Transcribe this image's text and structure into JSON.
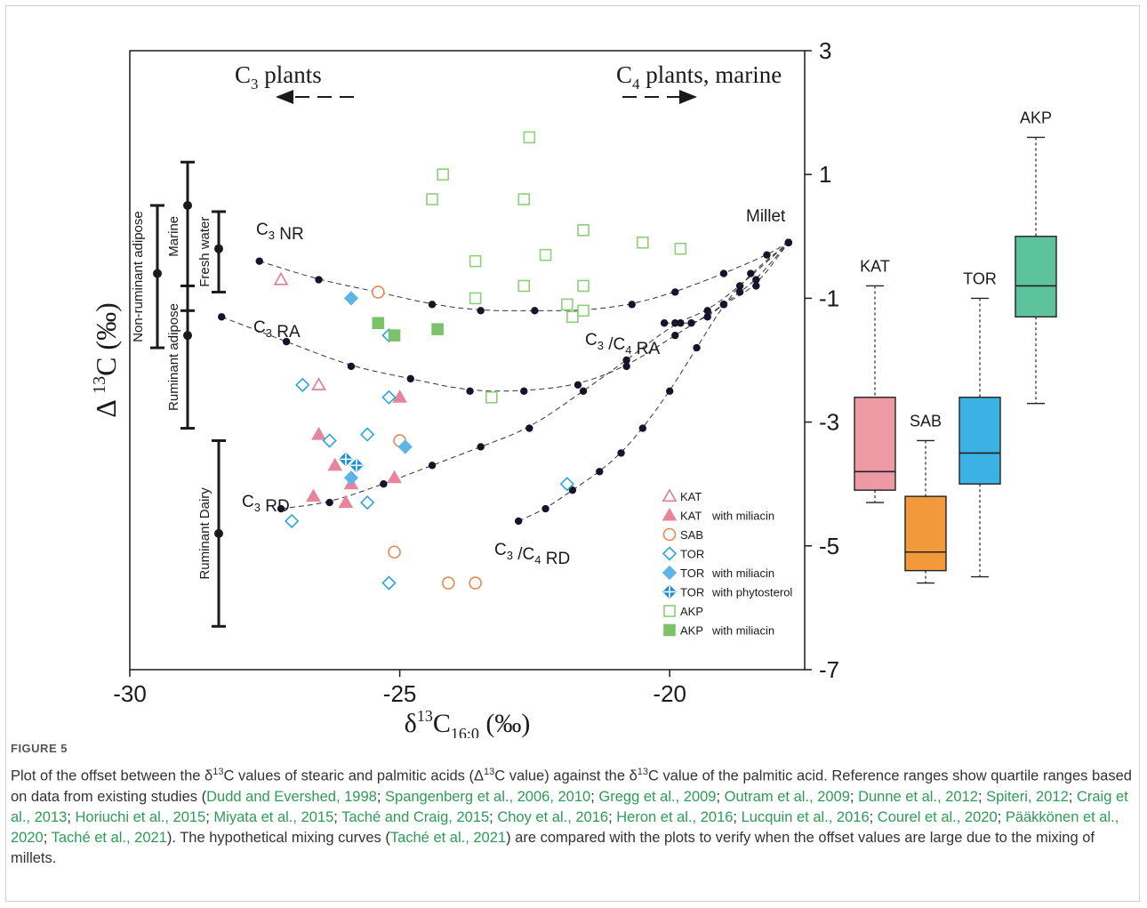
{
  "figure": {
    "label": "FIGURE 5",
    "caption_parts": [
      {
        "t": "Plot of the offset between the δ",
        "c": false
      },
      {
        "t": "13",
        "c": false,
        "sup": true
      },
      {
        "t": "C values of stearic and palmitic acids (Δ",
        "c": false
      },
      {
        "t": "13",
        "c": false,
        "sup": true
      },
      {
        "t": "C value) against the δ",
        "c": false
      },
      {
        "t": "13",
        "c": false,
        "sup": true
      },
      {
        "t": "C value of the palmitic acid. Reference ranges show quartile ranges based on data from existing studies (",
        "c": false
      },
      {
        "t": "Dudd and Evershed, 1998",
        "c": true
      },
      {
        "t": "; ",
        "c": false
      },
      {
        "t": "Spangenberg et al., 2006, 2010",
        "c": true
      },
      {
        "t": "; ",
        "c": false
      },
      {
        "t": "Gregg et al., 2009",
        "c": true
      },
      {
        "t": "; ",
        "c": false
      },
      {
        "t": "Outram et al., 2009",
        "c": true
      },
      {
        "t": "; ",
        "c": false
      },
      {
        "t": "Dunne et al., 2012",
        "c": true
      },
      {
        "t": "; ",
        "c": false
      },
      {
        "t": "Spiteri, 2012",
        "c": true
      },
      {
        "t": "; ",
        "c": false
      },
      {
        "t": "Craig et al., 2013",
        "c": true
      },
      {
        "t": "; ",
        "c": false
      },
      {
        "t": "Horiuchi et al., 2015",
        "c": true
      },
      {
        "t": "; ",
        "c": false
      },
      {
        "t": "Miyata et al., 2015",
        "c": true
      },
      {
        "t": "; ",
        "c": false
      },
      {
        "t": "Taché and Craig, 2015",
        "c": true
      },
      {
        "t": "; ",
        "c": false
      },
      {
        "t": "Choy et al., 2016",
        "c": true
      },
      {
        "t": "; ",
        "c": false
      },
      {
        "t": "Heron et al., 2016",
        "c": true
      },
      {
        "t": "; ",
        "c": false
      },
      {
        "t": "Lucquin et al., 2016",
        "c": true
      },
      {
        "t": "; ",
        "c": false
      },
      {
        "t": "Courel et al., 2020",
        "c": true
      },
      {
        "t": "; ",
        "c": false
      },
      {
        "t": "Pääkkönen et al., 2020",
        "c": true
      },
      {
        "t": "; ",
        "c": false
      },
      {
        "t": "Taché et al., 2021",
        "c": true
      },
      {
        "t": "). The hypothetical mixing curves (",
        "c": false
      },
      {
        "t": "Taché et al., 2021",
        "c": true
      },
      {
        "t": ") are compared with the plots to verify when the offset values are large due to the mixing of millets.",
        "c": false
      }
    ]
  },
  "chart_data": [
    {
      "type": "scatter",
      "xlabel": "δ13C16:0 (‰)",
      "ylabel": "Δ 13C (‰)",
      "xlim": [
        -30,
        -17.5
      ],
      "ylim": [
        -7,
        3
      ],
      "x_ticks": [
        -30,
        -25,
        -20
      ],
      "y_ticks": [
        3,
        1,
        -1,
        -3,
        -5,
        -7
      ],
      "top_annotations": {
        "left": "C3 plants",
        "right": "C4 plants, marine"
      },
      "reference_ranges": [
        {
          "label": "Non-ruminant adipose",
          "x": -29.6,
          "median": -0.6,
          "low": -1.8,
          "high": 0.5
        },
        {
          "label": "Marine",
          "x": -29.0,
          "median": 0.5,
          "low": -1.2,
          "high": 1.2
        },
        {
          "label": "Fresh water",
          "x": -28.4,
          "median": -0.2,
          "low": -0.9,
          "high": 0.4
        },
        {
          "label": "Ruminant adipose",
          "x": -29.0,
          "median": -1.6,
          "low": -3.1,
          "high": -0.8
        },
        {
          "label": "Ruminant Dairy",
          "x": -28.4,
          "median": -4.8,
          "low": -6.3,
          "high": -3.3
        }
      ],
      "curves": [
        {
          "label": "C3 NR",
          "points": [
            [
              -27.6,
              -0.4
            ],
            [
              -26.5,
              -0.7
            ],
            [
              -25.4,
              -0.9
            ],
            [
              -24.4,
              -1.1
            ],
            [
              -23.5,
              -1.2
            ],
            [
              -22.5,
              -1.2
            ],
            [
              -21.6,
              -1.2
            ],
            [
              -20.7,
              -1.1
            ],
            [
              -19.9,
              -0.9
            ],
            [
              -19.0,
              -0.6
            ],
            [
              -18.2,
              -0.3
            ],
            [
              -17.8,
              -0.1
            ]
          ]
        },
        {
          "label": "C3 RA",
          "points": [
            [
              -28.3,
              -1.3
            ],
            [
              -27.1,
              -1.7
            ],
            [
              -25.9,
              -2.1
            ],
            [
              -24.8,
              -2.3
            ],
            [
              -23.7,
              -2.5
            ],
            [
              -22.7,
              -2.5
            ],
            [
              -21.7,
              -2.4
            ],
            [
              -20.8,
              -2.1
            ],
            [
              -19.9,
              -1.6
            ],
            [
              -19.0,
              -1.1
            ],
            [
              -18.4,
              -0.8
            ],
            [
              -17.8,
              -0.1
            ]
          ]
        },
        {
          "label": "C3 RD",
          "points": [
            [
              -27.2,
              -4.4
            ],
            [
              -26.3,
              -4.3
            ],
            [
              -25.3,
              -4.0
            ],
            [
              -24.4,
              -3.7
            ],
            [
              -23.5,
              -3.4
            ],
            [
              -22.6,
              -3.1
            ],
            [
              -21.6,
              -2.5
            ],
            [
              -20.8,
              -2.0
            ],
            [
              -19.9,
              -1.4
            ],
            [
              -19.3,
              -1.2
            ],
            [
              -18.7,
              -0.8
            ],
            [
              -17.8,
              -0.1
            ]
          ]
        },
        {
          "label": "C3 /C4 RA",
          "points": [
            [
              -20.1,
              -1.4
            ],
            [
              -19.8,
              -1.4
            ],
            [
              -19.6,
              -1.4
            ],
            [
              -19.3,
              -1.3
            ],
            [
              -19.0,
              -1.1
            ],
            [
              -18.7,
              -0.9
            ],
            [
              -18.4,
              -0.7
            ],
            [
              -17.8,
              -0.1
            ]
          ]
        },
        {
          "label": "C3 /C4 RD",
          "points": [
            [
              -22.8,
              -4.6
            ],
            [
              -22.3,
              -4.4
            ],
            [
              -21.8,
              -4.1
            ],
            [
              -21.3,
              -3.8
            ],
            [
              -20.9,
              -3.5
            ],
            [
              -20.5,
              -3.1
            ],
            [
              -20.0,
              -2.5
            ],
            [
              -19.5,
              -1.8
            ],
            [
              -19.0,
              -1.1
            ],
            [
              -18.5,
              -0.6
            ],
            [
              -17.8,
              -0.1
            ]
          ]
        }
      ],
      "curve_annotation": "Millet",
      "series": [
        {
          "name": "KAT",
          "marker": "triangle-open",
          "color": "#e07a92",
          "points": [
            [
              -27.2,
              -0.7
            ],
            [
              -26.5,
              -2.4
            ]
          ]
        },
        {
          "name": "KAT",
          "suffix": "with miliacin",
          "marker": "triangle-filled",
          "color": "#e7859c",
          "points": [
            [
              -26.5,
              -3.2
            ],
            [
              -26.2,
              -3.7
            ],
            [
              -25.9,
              -4.0
            ],
            [
              -25.1,
              -3.9
            ],
            [
              -26.6,
              -4.2
            ],
            [
              -26.0,
              -4.3
            ],
            [
              -25.0,
              -2.6
            ]
          ]
        },
        {
          "name": "SAB",
          "marker": "circle-open",
          "color": "#e58a4e",
          "points": [
            [
              -25.4,
              -0.9
            ],
            [
              -25.0,
              -3.3
            ],
            [
              -25.1,
              -5.1
            ],
            [
              -24.1,
              -5.6
            ],
            [
              -23.6,
              -5.6
            ]
          ]
        },
        {
          "name": "TOR",
          "marker": "diamond-open",
          "color": "#2aa6e0",
          "points": [
            [
              -25.2,
              -1.6
            ],
            [
              -26.8,
              -2.4
            ],
            [
              -25.2,
              -2.6
            ],
            [
              -26.3,
              -3.3
            ],
            [
              -25.6,
              -3.2
            ],
            [
              -25.6,
              -4.3
            ],
            [
              -27.0,
              -4.6
            ],
            [
              -21.9,
              -4.0
            ],
            [
              -25.2,
              -5.6
            ]
          ]
        },
        {
          "name": "TOR",
          "suffix": "with miliacin",
          "marker": "diamond-filled",
          "color": "#5fb4e6",
          "points": [
            [
              -25.9,
              -1.0
            ],
            [
              -24.9,
              -3.4
            ],
            [
              -25.9,
              -3.9
            ]
          ]
        },
        {
          "name": "TOR",
          "suffix": "with phytosterol",
          "marker": "diamond-phyto",
          "color": "#1a8fd6",
          "points": [
            [
              -26.0,
              -3.6
            ],
            [
              -25.8,
              -3.7
            ]
          ]
        },
        {
          "name": "AKP",
          "marker": "square-open",
          "color": "#8ccf78",
          "points": [
            [
              -22.6,
              1.6
            ],
            [
              -24.2,
              1.0
            ],
            [
              -24.4,
              0.6
            ],
            [
              -22.7,
              0.6
            ],
            [
              -21.6,
              0.1
            ],
            [
              -20.5,
              -0.1
            ],
            [
              -19.8,
              -0.2
            ],
            [
              -22.3,
              -0.3
            ],
            [
              -23.6,
              -0.4
            ],
            [
              -22.7,
              -0.8
            ],
            [
              -21.6,
              -0.8
            ],
            [
              -21.9,
              -1.1
            ],
            [
              -21.6,
              -1.2
            ],
            [
              -21.8,
              -1.3
            ],
            [
              -23.6,
              -1.0
            ],
            [
              -23.3,
              -2.6
            ]
          ]
        },
        {
          "name": "AKP",
          "suffix": "with miliacin",
          "marker": "square-filled",
          "color": "#7cc26a",
          "points": [
            [
              -25.4,
              -1.4
            ],
            [
              -25.1,
              -1.6
            ],
            [
              -24.3,
              -1.5
            ]
          ]
        }
      ]
    },
    {
      "type": "box",
      "ylim": [
        -7,
        3
      ],
      "boxes": [
        {
          "label": "KAT",
          "color": "#ee9aa5",
          "whisker_low": -4.3,
          "q1": -4.1,
          "median": -3.8,
          "q3": -2.6,
          "whisker_high": -0.8
        },
        {
          "label": "SAB",
          "color": "#f2993c",
          "whisker_low": -5.6,
          "q1": -5.4,
          "median": -5.1,
          "q3": -4.2,
          "whisker_high": -3.3
        },
        {
          "label": "TOR",
          "color": "#3cb1e4",
          "whisker_low": -5.5,
          "q1": -4.0,
          "median": -3.5,
          "q3": -2.6,
          "whisker_high": -1.0
        },
        {
          "label": "AKP",
          "color": "#5cc39d",
          "whisker_low": -2.7,
          "q1": -1.3,
          "median": -0.8,
          "q3": 0.0,
          "whisker_high": 1.6
        }
      ]
    }
  ]
}
